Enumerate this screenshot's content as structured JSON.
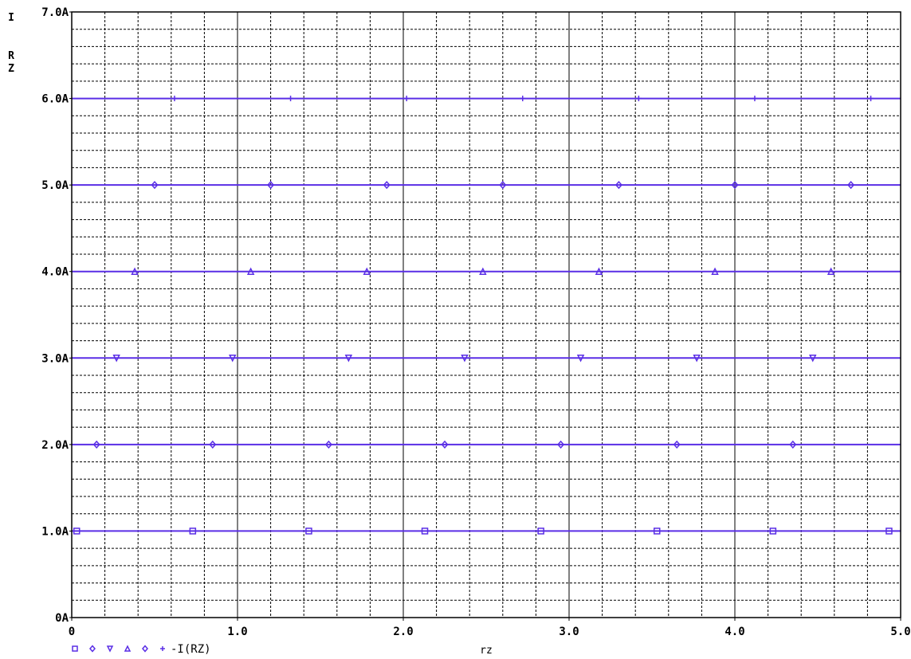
{
  "chart_data": {
    "type": "line",
    "title": "",
    "xlabel": "rz",
    "ylabel": [
      "I",
      "R",
      "Z"
    ],
    "xlim": [
      0,
      5.0
    ],
    "ylim": [
      0,
      7.0
    ],
    "x_ticks": [
      "0",
      "1.0",
      "2.0",
      "3.0",
      "4.0",
      "5.0"
    ],
    "y_ticks": [
      "0A",
      "1.0A",
      "2.0A",
      "3.0A",
      "4.0A",
      "5.0A",
      "6.0A",
      "7.0A"
    ],
    "grid": true,
    "legend": {
      "position": "bottom-left",
      "symbols": [
        "□",
        "◇",
        "▽",
        "△",
        "◇",
        "+"
      ],
      "label": "-I(RZ)"
    },
    "colors": {
      "series": "#5a2ee6",
      "grid": "#000000"
    },
    "series": [
      {
        "marker": "square",
        "values": [
          1.0,
          1.0
        ],
        "marker_x": [
          0.03,
          0.73,
          1.43,
          2.13,
          2.83,
          3.53,
          4.23,
          4.93
        ]
      },
      {
        "marker": "diamond",
        "values": [
          2.0,
          2.0
        ],
        "marker_x": [
          0.15,
          0.85,
          1.55,
          2.25,
          2.95,
          3.65,
          4.35
        ]
      },
      {
        "marker": "triangle-down",
        "values": [
          3.0,
          3.0
        ],
        "marker_x": [
          0.27,
          0.97,
          1.67,
          2.37,
          3.07,
          3.77,
          4.47
        ]
      },
      {
        "marker": "triangle-up",
        "values": [
          4.0,
          4.0
        ],
        "marker_x": [
          0.38,
          1.08,
          1.78,
          2.48,
          3.18,
          3.88,
          4.58
        ]
      },
      {
        "marker": "diamond",
        "values": [
          5.0,
          5.0
        ],
        "marker_x": [
          0.5,
          1.2,
          1.9,
          2.6,
          3.3,
          4.0,
          4.7
        ]
      },
      {
        "marker": "plus",
        "values": [
          6.0,
          6.0
        ],
        "marker_x": [
          0.62,
          1.32,
          2.02,
          2.72,
          3.42,
          4.12,
          4.82
        ]
      }
    ]
  }
}
